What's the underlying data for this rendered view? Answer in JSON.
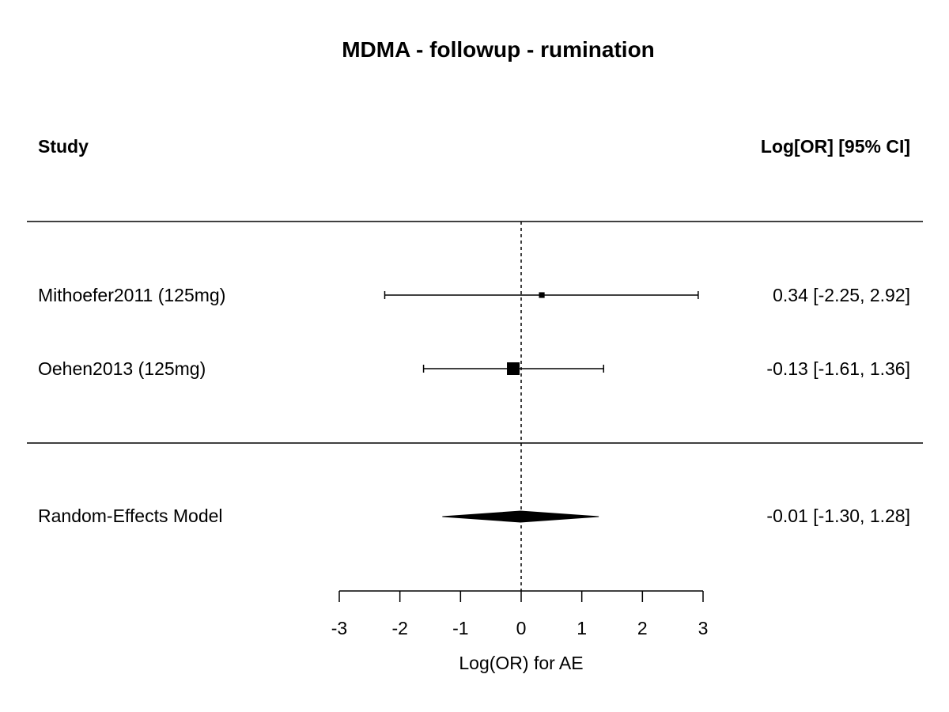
{
  "chart_data": {
    "type": "forest",
    "title": "MDMA - followup - rumination",
    "column_headers": {
      "study": "Study",
      "estimate": "Log[OR] [95% CI]"
    },
    "studies": [
      {
        "label": "Mithoefer2011 (125mg)",
        "estimate": 0.34,
        "ci_lower": -2.25,
        "ci_upper": 2.92,
        "estimate_text": "0.34 [-2.25, 2.92]",
        "relative_weight": 0.2
      },
      {
        "label": "Oehen2013 (125mg)",
        "estimate": -0.13,
        "ci_lower": -1.61,
        "ci_upper": 1.36,
        "estimate_text": "-0.13 [-1.61, 1.36]",
        "relative_weight": 1.0
      }
    ],
    "summary": {
      "label": "Random-Effects Model",
      "estimate": -0.01,
      "ci_lower": -1.3,
      "ci_upper": 1.28,
      "estimate_text": "-0.01 [-1.30, 1.28]"
    },
    "x_axis": {
      "label": "Log(OR) for AE",
      "range": [
        -3,
        3
      ],
      "ticks": [
        -3,
        -2,
        -1,
        0,
        1,
        2,
        3
      ],
      "tick_labels": [
        "-3",
        "-2",
        "-1",
        "0",
        "1",
        "2",
        "3"
      ]
    },
    "reference_line": 0
  }
}
